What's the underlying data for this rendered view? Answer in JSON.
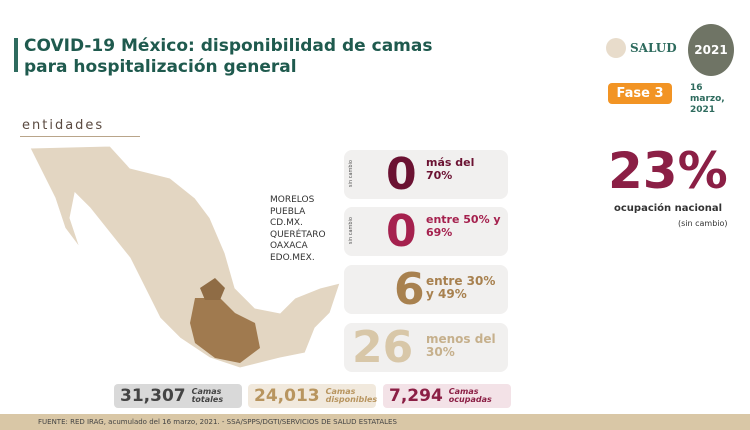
{
  "header": {
    "title": "COVID-19 México: disponibilidad de camas para hospitalización general",
    "logo_text": "SALUD",
    "year_logo": "2021",
    "fase": "Fase 3",
    "date": "16 marzo, 2021"
  },
  "section": "entidades",
  "states": [
    "MORELOS",
    "PUEBLA",
    "CD.MX.",
    "QUERÉTARO",
    "OAXACA",
    "EDO.MEX."
  ],
  "cards": [
    {
      "badge": "sin cambio",
      "value": "0",
      "label": "más del 70%",
      "color": "#6b1232"
    },
    {
      "badge": "sin cambio",
      "value": "0",
      "label": "entre 50% y 69%",
      "color": "#a5214e"
    },
    {
      "badge": "",
      "value": "6",
      "label": "entre 30% y 49%",
      "color": "#a8814f"
    },
    {
      "badge": "",
      "value": "26",
      "label": "menos del 30%",
      "color": "#d8c7a8"
    }
  ],
  "national": {
    "value": "23%",
    "label": "ocupación nacional",
    "note": "(sin cambio)"
  },
  "totals": [
    {
      "value": "31,307",
      "label": "Camas totales",
      "bg": "#d9d9d9",
      "color": "#444"
    },
    {
      "value": "24,013",
      "label": "Camas disponibles",
      "bg": "#f1e9dd",
      "color": "#b8955f"
    },
    {
      "value": "7,294",
      "label": "Camas ocupadas",
      "bg": "#f3e2e7",
      "color": "#8b1f45"
    }
  ],
  "footer": "FUENTE: RED IRAG, acumulado del 16 marzo, 2021. - SSA/SPPS/DGTI/SERVICIOS DE SALUD ESTATALES"
}
